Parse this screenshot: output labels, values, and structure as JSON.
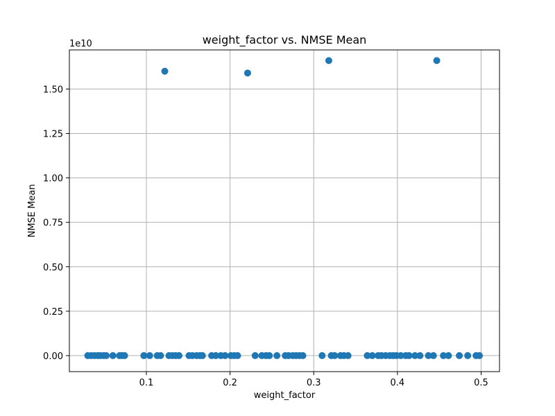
{
  "chart_data": {
    "type": "scatter",
    "title": "weight_factor vs. NMSE Mean",
    "xlabel": "weight_factor",
    "ylabel": "NMSE Mean",
    "y_offset_label": "1e10",
    "xlim": [
      0.008,
      0.522
    ],
    "ylim": [
      -0.09,
      1.72
    ],
    "xticks": [
      0.1,
      0.2,
      0.3,
      0.4,
      0.5
    ],
    "xtick_labels": [
      "0.1",
      "0.2",
      "0.3",
      "0.4",
      "0.5"
    ],
    "yticks": [
      0.0,
      0.25,
      0.5,
      0.75,
      1.0,
      1.25,
      1.5
    ],
    "ytick_labels": [
      "0.00",
      "0.25",
      "0.50",
      "0.75",
      "1.00",
      "1.25",
      "1.50"
    ],
    "grid": true,
    "marker_color": "#1f77b4",
    "series": [
      {
        "x": [
          0.03,
          0.034,
          0.038,
          0.042,
          0.045,
          0.049,
          0.052,
          0.06,
          0.068,
          0.071,
          0.074,
          0.097,
          0.104,
          0.113,
          0.117,
          0.127,
          0.131,
          0.135,
          0.139,
          0.151,
          0.155,
          0.16,
          0.164,
          0.167,
          0.178,
          0.183,
          0.189,
          0.194,
          0.201,
          0.205,
          0.209,
          0.23,
          0.238,
          0.243,
          0.247,
          0.256,
          0.266,
          0.27,
          0.275,
          0.279,
          0.283,
          0.287,
          0.31,
          0.321,
          0.325,
          0.332,
          0.336,
          0.341,
          0.364,
          0.37,
          0.377,
          0.381,
          0.386,
          0.391,
          0.395,
          0.399,
          0.404,
          0.41,
          0.414,
          0.421,
          0.427,
          0.437,
          0.443,
          0.455,
          0.461,
          0.474,
          0.484,
          0.494,
          0.498,
          0.122,
          0.221,
          0.318,
          0.447
        ],
        "y": [
          0,
          0,
          0,
          0,
          0,
          0,
          0,
          0,
          0,
          0,
          0,
          0,
          0,
          0,
          0,
          0,
          0,
          0,
          0,
          0,
          0,
          0,
          0,
          0,
          0,
          0,
          0,
          0,
          0,
          0,
          0,
          0,
          0,
          0,
          0,
          0,
          0,
          0,
          0,
          0,
          0,
          0,
          0,
          0,
          0,
          0,
          0,
          0,
          0,
          0,
          0,
          0,
          0,
          0,
          0,
          0,
          0,
          0,
          0,
          0,
          0,
          0,
          0,
          0,
          0,
          0,
          0,
          0,
          0,
          1.6,
          1.59,
          1.66,
          1.66
        ]
      }
    ]
  }
}
